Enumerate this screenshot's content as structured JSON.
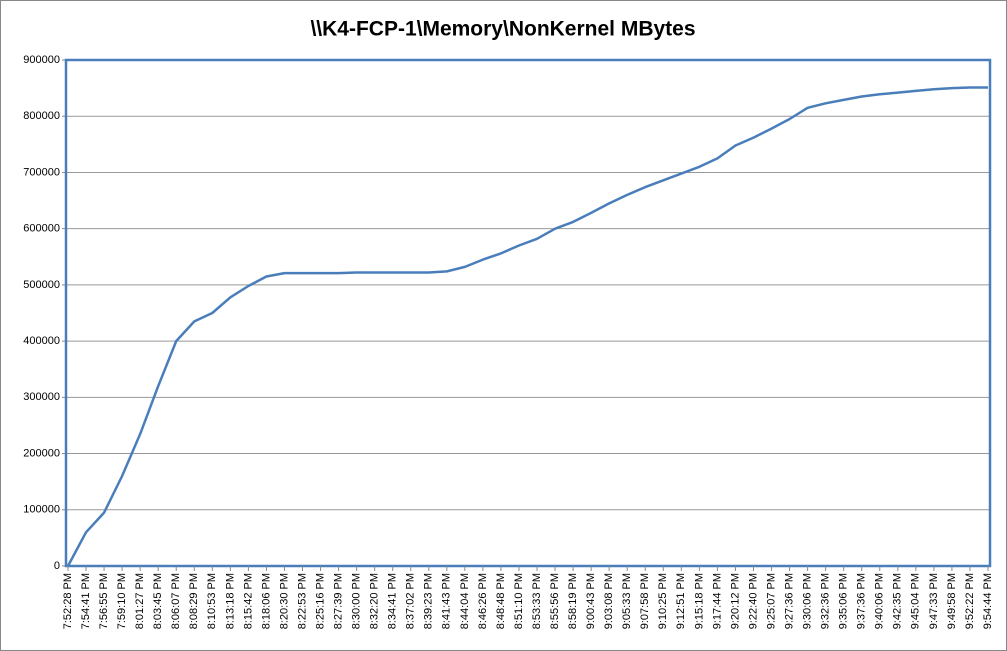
{
  "chart_data": {
    "type": "line",
    "title": "\\\\K4-FCP-1\\Memory\\NonKernel MBytes",
    "categories": [
      "7:52:28 PM",
      "7:54:41 PM",
      "7:56:55 PM",
      "7:59:10 PM",
      "8:01:27 PM",
      "8:03:45 PM",
      "8:06:07 PM",
      "8:08:29 PM",
      "8:10:53 PM",
      "8:13:18 PM",
      "8:15:42 PM",
      "8:18:06 PM",
      "8:20:30 PM",
      "8:22:53 PM",
      "8:25:16 PM",
      "8:27:39 PM",
      "8:30:00 PM",
      "8:32:20 PM",
      "8:34:41 PM",
      "8:37:02 PM",
      "8:39:23 PM",
      "8:41:43 PM",
      "8:44:04 PM",
      "8:46:26 PM",
      "8:48:48 PM",
      "8:51:10 PM",
      "8:53:33 PM",
      "8:55:56 PM",
      "8:58:19 PM",
      "9:00:43 PM",
      "9:03:08 PM",
      "9:05:33 PM",
      "9:07:58 PM",
      "9:10:25 PM",
      "9:12:51 PM",
      "9:15:18 PM",
      "9:17:44 PM",
      "9:20:12 PM",
      "9:22:40 PM",
      "9:25:07 PM",
      "9:27:36 PM",
      "9:30:06 PM",
      "9:32:36 PM",
      "9:35:06 PM",
      "9:37:36 PM",
      "9:40:06 PM",
      "9:42:35 PM",
      "9:45:04 PM",
      "9:47:33 PM",
      "9:49:58 PM",
      "9:52:22 PM",
      "9:54:44 PM"
    ],
    "values": [
      0,
      60000,
      95000,
      160000,
      235000,
      320000,
      400000,
      435000,
      450000,
      478000,
      498000,
      515000,
      521000,
      521000,
      521000,
      521000,
      522000,
      522000,
      522000,
      522000,
      522000,
      524000,
      532000,
      545000,
      556000,
      570000,
      582000,
      600000,
      612000,
      628000,
      645000,
      660000,
      674000,
      686000,
      698000,
      710000,
      725000,
      748000,
      762000,
      778000,
      795000,
      815000,
      823000,
      829000,
      835000,
      839000,
      842000,
      845000,
      848000,
      850000,
      851000,
      851000
    ],
    "color": "#4a7ebb",
    "ylim": [
      0,
      900000
    ],
    "yticks": [
      0,
      100000,
      200000,
      300000,
      400000,
      500000,
      600000,
      700000,
      800000,
      900000
    ],
    "grid": true
  }
}
